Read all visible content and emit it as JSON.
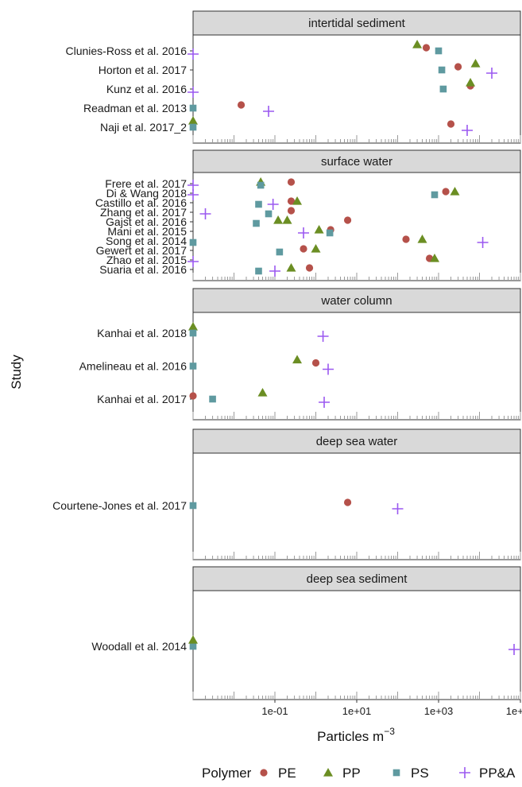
{
  "chart_data": {
    "type": "scatter",
    "x_scale": "log10",
    "xlim": [
      0.001,
      100000
    ],
    "x_ticks": [
      {
        "value": 0.1,
        "label": "1e-01"
      },
      {
        "value": 10,
        "label": "1e+01"
      },
      {
        "value": 1000,
        "label": "1e+03"
      },
      {
        "value": 100000,
        "label": "1e+05"
      }
    ],
    "xlabel": "Particles m",
    "xlabel_superscript": "−3",
    "ylabel": "Study",
    "legend": {
      "title": "Polymer",
      "position": "bottom",
      "entries": [
        {
          "name": "PE",
          "shape": "circle",
          "color": "#b5514a"
        },
        {
          "name": "PP",
          "shape": "triangle",
          "color": "#6b8e23"
        },
        {
          "name": "PS",
          "shape": "square",
          "color": "#5f9aa0"
        },
        {
          "name": "PP&A",
          "shape": "plus",
          "color": "#9b59f0"
        }
      ]
    },
    "panels": [
      {
        "title": "intertidal sediment",
        "studies": [
          "Clunies-Ross et al. 2016",
          "Horton et al. 2017",
          "Kunz et al. 2016",
          "Readman et al. 2013",
          "Naji et al. 2017_2"
        ],
        "points": [
          {
            "study": 0,
            "polymer": "PE",
            "x": 500
          },
          {
            "study": 0,
            "polymer": "PP",
            "x": 300
          },
          {
            "study": 0,
            "polymer": "PS",
            "x": 1000
          },
          {
            "study": 0,
            "polymer": "PP&A",
            "x": 0.001
          },
          {
            "study": 1,
            "polymer": "PE",
            "x": 3000
          },
          {
            "study": 1,
            "polymer": "PP",
            "x": 8000
          },
          {
            "study": 1,
            "polymer": "PS",
            "x": 1200
          },
          {
            "study": 1,
            "polymer": "PP&A",
            "x": 20000
          },
          {
            "study": 2,
            "polymer": "PE",
            "x": 6000
          },
          {
            "study": 2,
            "polymer": "PP",
            "x": 6000
          },
          {
            "study": 2,
            "polymer": "PS",
            "x": 1300
          },
          {
            "study": 2,
            "polymer": "PP&A",
            "x": 0.001
          },
          {
            "study": 3,
            "polymer": "PE",
            "x": 0.015
          },
          {
            "study": 3,
            "polymer": "PS",
            "x": 0.001
          },
          {
            "study": 3,
            "polymer": "PP&A",
            "x": 0.07
          },
          {
            "study": 4,
            "polymer": "PE",
            "x": 2000
          },
          {
            "study": 4,
            "polymer": "PP",
            "x": 0.001
          },
          {
            "study": 4,
            "polymer": "PS",
            "x": 0.001
          },
          {
            "study": 4,
            "polymer": "PP&A",
            "x": 5000
          }
        ]
      },
      {
        "title": "surface water",
        "studies": [
          "Frere et al. 2017",
          "Di & Wang 2018",
          "Castillo et al. 2016",
          "Zhang et al. 2017",
          "Gajst et al. 2016",
          "Mani et al. 2015",
          "Song et al. 2014",
          "Gewert et al. 2017",
          "Zhao et al. 2015",
          "Suaria et al. 2016"
        ],
        "points": [
          {
            "study": 0,
            "polymer": "PE",
            "x": 0.25
          },
          {
            "study": 0,
            "polymer": "PP",
            "x": 0.045
          },
          {
            "study": 0,
            "polymer": "PS",
            "x": 0.045
          },
          {
            "study": 0,
            "polymer": "PP&A",
            "x": 0.001
          },
          {
            "study": 1,
            "polymer": "PE",
            "x": 1500
          },
          {
            "study": 1,
            "polymer": "PP",
            "x": 2500
          },
          {
            "study": 1,
            "polymer": "PS",
            "x": 800
          },
          {
            "study": 1,
            "polymer": "PP&A",
            "x": 0.001
          },
          {
            "study": 2,
            "polymer": "PE",
            "x": 0.25
          },
          {
            "study": 2,
            "polymer": "PP",
            "x": 0.35
          },
          {
            "study": 2,
            "polymer": "PS",
            "x": 0.04
          },
          {
            "study": 2,
            "polymer": "PP&A",
            "x": 0.09
          },
          {
            "study": 3,
            "polymer": "PE",
            "x": 0.25
          },
          {
            "study": 3,
            "polymer": "PS",
            "x": 0.07
          },
          {
            "study": 3,
            "polymer": "PP&A",
            "x": 0.002
          },
          {
            "study": 4,
            "polymer": "PE",
            "x": 6
          },
          {
            "study": 4,
            "polymer": "PP",
            "x": 0.12
          },
          {
            "study": 4,
            "polymer": "PS",
            "x": 0.035
          },
          {
            "study": 4,
            "polymer": "PP",
            "x": 0.2
          },
          {
            "study": 5,
            "polymer": "PE",
            "x": 2.3
          },
          {
            "study": 5,
            "polymer": "PP",
            "x": 1.2
          },
          {
            "study": 5,
            "polymer": "PS",
            "x": 2.2
          },
          {
            "study": 5,
            "polymer": "PP&A",
            "x": 0.5
          },
          {
            "study": 6,
            "polymer": "PE",
            "x": 160
          },
          {
            "study": 6,
            "polymer": "PP",
            "x": 400
          },
          {
            "study": 6,
            "polymer": "PS",
            "x": 0.001
          },
          {
            "study": 6,
            "polymer": "PP&A",
            "x": 12000
          },
          {
            "study": 7,
            "polymer": "PE",
            "x": 0.5
          },
          {
            "study": 7,
            "polymer": "PP",
            "x": 1.0
          },
          {
            "study": 7,
            "polymer": "PS",
            "x": 0.13
          },
          {
            "study": 8,
            "polymer": "PE",
            "x": 600
          },
          {
            "study": 8,
            "polymer": "PP",
            "x": 800
          },
          {
            "study": 8,
            "polymer": "PP&A",
            "x": 0.001
          },
          {
            "study": 9,
            "polymer": "PE",
            "x": 0.7
          },
          {
            "study": 9,
            "polymer": "PP",
            "x": 0.25
          },
          {
            "study": 9,
            "polymer": "PS",
            "x": 0.04
          },
          {
            "study": 9,
            "polymer": "PP&A",
            "x": 0.1
          }
        ]
      },
      {
        "title": "water column",
        "studies": [
          "Kanhai et al. 2018",
          "Amelineau et al. 2016",
          "Kanhai et al. 2017"
        ],
        "points": [
          {
            "study": 0,
            "polymer": "PP",
            "x": 0.001
          },
          {
            "study": 0,
            "polymer": "PS",
            "x": 0.001
          },
          {
            "study": 0,
            "polymer": "PP&A",
            "x": 1.5
          },
          {
            "study": 1,
            "polymer": "PS",
            "x": 0.001
          },
          {
            "study": 1,
            "polymer": "PE",
            "x": 1.0
          },
          {
            "study": 1,
            "polymer": "PP&A",
            "x": 2.0
          },
          {
            "study": 1,
            "polymer": "PP",
            "x": 0.35
          },
          {
            "study": 2,
            "polymer": "PP",
            "x": 0.05
          },
          {
            "study": 2,
            "polymer": "PP&A",
            "x": 1.6
          },
          {
            "study": 2,
            "polymer": "PE",
            "x": 0.001
          },
          {
            "study": 2,
            "polymer": "PS",
            "x": 0.003
          }
        ]
      },
      {
        "title": "deep sea water",
        "studies": [
          "Courtene-Jones et al. 2017"
        ],
        "points": [
          {
            "study": 0,
            "polymer": "PS",
            "x": 0.001
          },
          {
            "study": 0,
            "polymer": "PE",
            "x": 6
          },
          {
            "study": 0,
            "polymer": "PP&A",
            "x": 100
          }
        ]
      },
      {
        "title": "deep sea sediment",
        "studies": [
          "Woodall et al. 2014"
        ],
        "points": [
          {
            "study": 0,
            "polymer": "PP&A",
            "x": 70000
          },
          {
            "study": 0,
            "polymer": "PS",
            "x": 0.001
          },
          {
            "study": 0,
            "polymer": "PP",
            "x": 0.001
          }
        ]
      }
    ]
  }
}
